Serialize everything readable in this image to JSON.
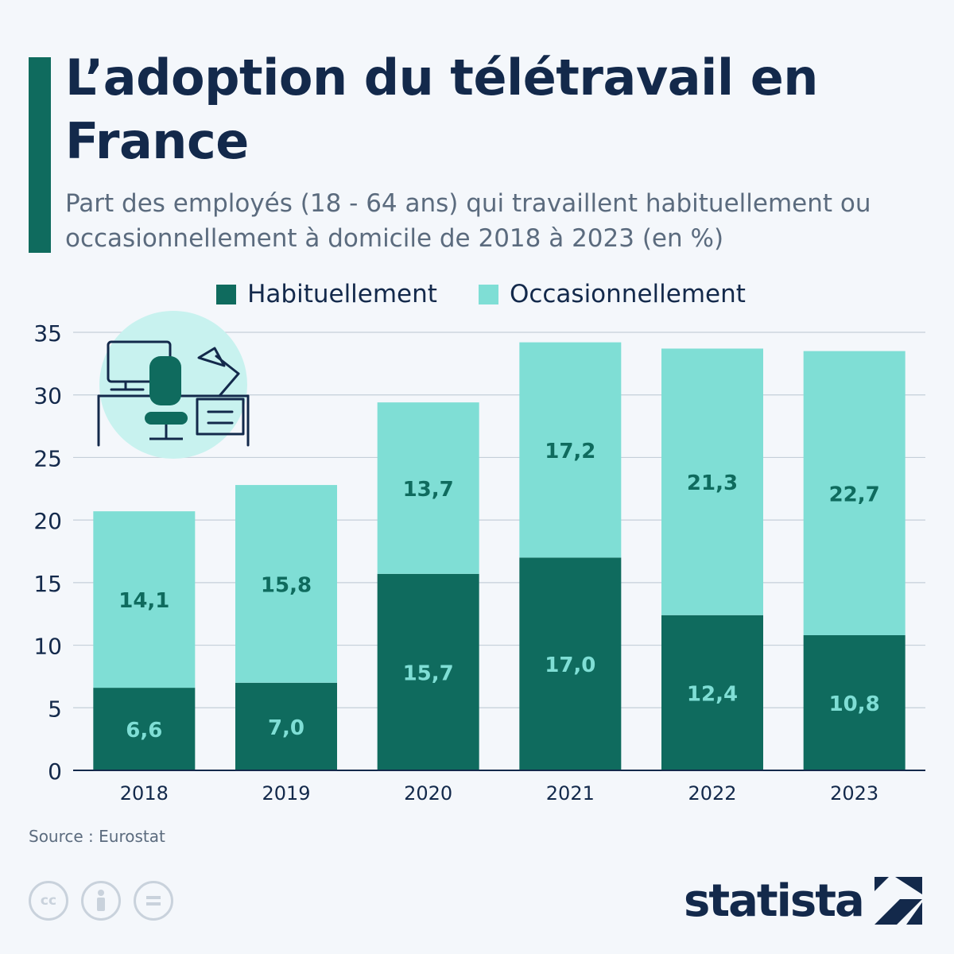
{
  "header": {
    "title": "L’adoption du télétravail en France",
    "subtitle": "Part des employés (18 - 64 ans) qui travaillent habituellement ou occasionnellement à domicile de 2018 à 2023 (en %)"
  },
  "colors": {
    "accent": "#0f6b5e",
    "habituellement": "#0f6b5e",
    "occasionnellement": "#7fded5",
    "label_on_dark": "#7fded5",
    "label_on_light": "#0f6b5e",
    "grid": "#c5cfd9",
    "text_dark": "#13294b"
  },
  "legend": [
    {
      "label": "Habituellement",
      "color": "#0f6b5e"
    },
    {
      "label": "Occasionnellement",
      "color": "#7fded5"
    }
  ],
  "chart_data": {
    "type": "bar",
    "stacked": true,
    "title": "L’adoption du télétravail en France",
    "categories": [
      "2018",
      "2019",
      "2020",
      "2021",
      "2022",
      "2023"
    ],
    "series": [
      {
        "name": "Habituellement",
        "values": [
          6.6,
          7.0,
          15.7,
          17.0,
          12.4,
          10.8
        ],
        "labels": [
          "6,6",
          "7,0",
          "15,7",
          "17,0",
          "12,4",
          "10,8"
        ]
      },
      {
        "name": "Occasionnellement",
        "values": [
          14.1,
          15.8,
          13.7,
          17.2,
          21.3,
          22.7
        ],
        "labels": [
          "14,1",
          "15,8",
          "13,7",
          "17,2",
          "21,3",
          "22,7"
        ]
      }
    ],
    "ylim": [
      0,
      35
    ],
    "yticks": [
      0,
      5,
      10,
      15,
      20,
      25,
      30,
      35
    ],
    "grid": true,
    "legend_position": "top-center"
  },
  "illustration": {
    "icon": "home-office-desk-icon"
  },
  "footer": {
    "source": "Source : Eurostat",
    "brand": "statista",
    "license_icons": [
      "cc-icon",
      "attribution-icon",
      "no-derivatives-icon"
    ]
  }
}
